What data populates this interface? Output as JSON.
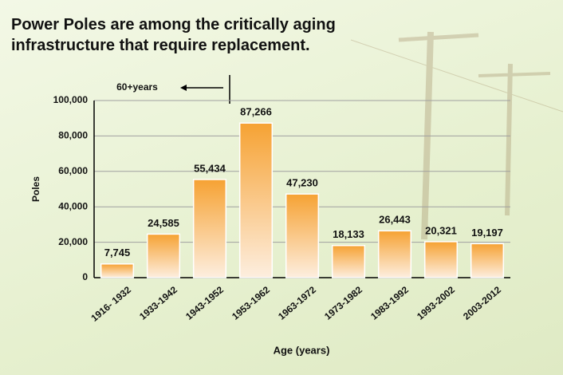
{
  "chart_data": {
    "type": "bar",
    "title": "Power Poles are among the critically aging infrastructure that require replacement.",
    "annotation": "60+years",
    "y_label": "Poles",
    "x_label": "Age (years)",
    "categories": [
      "1916- 1932",
      "1933-1942",
      "1943-1952",
      "1953-1962",
      "1963-1972",
      "1973-1982",
      "1983-1992",
      "1993-2002",
      "2003-2012"
    ],
    "values": [
      7745,
      24585,
      55434,
      87266,
      47230,
      18133,
      26443,
      20321,
      19197
    ],
    "value_labels": [
      "7,745",
      "24,585",
      "55,434",
      "87,266",
      "47,230",
      "18,133",
      "26,443",
      "20,321",
      "19,197"
    ],
    "color": "#f6a233",
    "ylim": [
      0,
      100000
    ],
    "yticks": [
      0,
      {
        "value": 20000,
        "label": "20,000"
      },
      {
        "value": 40000,
        "label": "40,000"
      },
      {
        "value": 60000,
        "label": "60,000"
      },
      {
        "value": 80000,
        "label": "80,000"
      },
      {
        "value": 100000,
        "label": "100,000"
      }
    ],
    "grid": true
  }
}
